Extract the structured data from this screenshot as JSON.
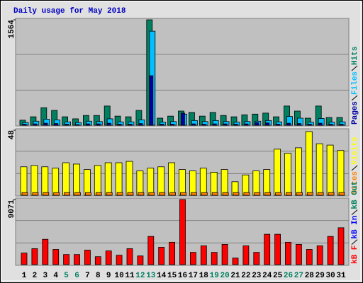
{
  "title": "Daily usage for May 2018",
  "chart_data": [
    {
      "type": "bar",
      "ylim": [
        0,
        1564
      ],
      "yticks": [
        1564
      ],
      "series": [
        {
          "name": "Pages",
          "color": "#0000a0",
          "values": [
            15,
            20,
            30,
            25,
            15,
            10,
            20,
            20,
            30,
            15,
            15,
            25,
            735,
            15,
            15,
            180,
            20,
            15,
            20,
            20,
            15,
            20,
            40,
            35,
            15,
            30,
            25,
            15,
            30,
            15,
            15
          ]
        },
        {
          "name": "Files",
          "color": "#00c0ff",
          "values": [
            40,
            60,
            90,
            80,
            50,
            40,
            60,
            55,
            95,
            50,
            50,
            80,
            1395,
            45,
            55,
            165,
            70,
            55,
            70,
            55,
            45,
            55,
            60,
            70,
            50,
            130,
            105,
            45,
            100,
            45,
            50
          ]
        },
        {
          "name": "Hits",
          "color": "#008060",
          "values": [
            75,
            125,
            260,
            220,
            125,
            95,
            145,
            145,
            285,
            135,
            125,
            220,
            1564,
            105,
            135,
            210,
            190,
            135,
            190,
            145,
            125,
            155,
            165,
            180,
            125,
            285,
            210,
            105,
            285,
            115,
            115
          ]
        }
      ]
    },
    {
      "type": "bar",
      "ylim": [
        0,
        48
      ],
      "yticks": [
        48
      ],
      "series": [
        {
          "name": "Sites",
          "color": "#ff8000",
          "values": [
            2,
            2,
            2,
            2,
            2,
            2,
            2,
            2,
            2,
            2,
            2,
            2,
            2,
            2,
            2,
            2,
            2,
            2,
            2,
            2,
            2,
            2,
            2,
            2,
            2,
            2,
            2,
            2,
            2,
            2,
            2
          ]
        },
        {
          "name": "Visits",
          "color": "#ffff00",
          "values": [
            21,
            22,
            21,
            20,
            24,
            23,
            19,
            22,
            24,
            24,
            25,
            18,
            20,
            21,
            24,
            19,
            18,
            20,
            17,
            19,
            10,
            15,
            18,
            19,
            34,
            31,
            35,
            47,
            38,
            37,
            33
          ]
        }
      ]
    },
    {
      "type": "bar",
      "ylim": [
        0,
        9071
      ],
      "yticks": [
        9071
      ],
      "categories": [
        "1",
        "2",
        "3",
        "4",
        "5",
        "6",
        "7",
        "8",
        "9",
        "10",
        "11",
        "12",
        "13",
        "14",
        "15",
        "16",
        "17",
        "18",
        "19",
        "20",
        "21",
        "22",
        "23",
        "24",
        "25",
        "26",
        "27",
        "28",
        "29",
        "30",
        "31"
      ],
      "category_colors": [
        "#000",
        "#000",
        "#000",
        "#000",
        "#008060",
        "#008060",
        "#000",
        "#000",
        "#000",
        "#000",
        "#000",
        "#008060",
        "#008060",
        "#000",
        "#000",
        "#000",
        "#000",
        "#000",
        "#008060",
        "#008060",
        "#000",
        "#000",
        "#000",
        "#000",
        "#000",
        "#008060",
        "#008060",
        "#000",
        "#000",
        "#000",
        "#000"
      ],
      "series": [
        {
          "name": "kB F",
          "color": "#ff0000",
          "values": [
            1610,
            2220,
            3530,
            2120,
            1410,
            1410,
            2020,
            1110,
            1910,
            1310,
            2220,
            1210,
            3930,
            2420,
            3120,
            9071,
            1710,
            2620,
            1710,
            2820,
            910,
            2620,
            1710,
            4230,
            4230,
            3120,
            2820,
            2120,
            2620,
            3930,
            5140
          ]
        },
        {
          "name": "kB In",
          "color": "#0000ff",
          "values": [
            null,
            null,
            null,
            null,
            null,
            null,
            null,
            null,
            null,
            null,
            null,
            null,
            null,
            null,
            null,
            null,
            null,
            null,
            null,
            null,
            null,
            null,
            null,
            null,
            null,
            null,
            null,
            null,
            null,
            null,
            null
          ]
        },
        {
          "name": "kB Out",
          "color": "#008060",
          "values": [
            null,
            null,
            null,
            null,
            null,
            null,
            null,
            null,
            null,
            null,
            null,
            null,
            null,
            null,
            null,
            null,
            null,
            null,
            null,
            null,
            null,
            null,
            null,
            null,
            null,
            null,
            null,
            null,
            null,
            null,
            null
          ]
        }
      ]
    }
  ]
}
